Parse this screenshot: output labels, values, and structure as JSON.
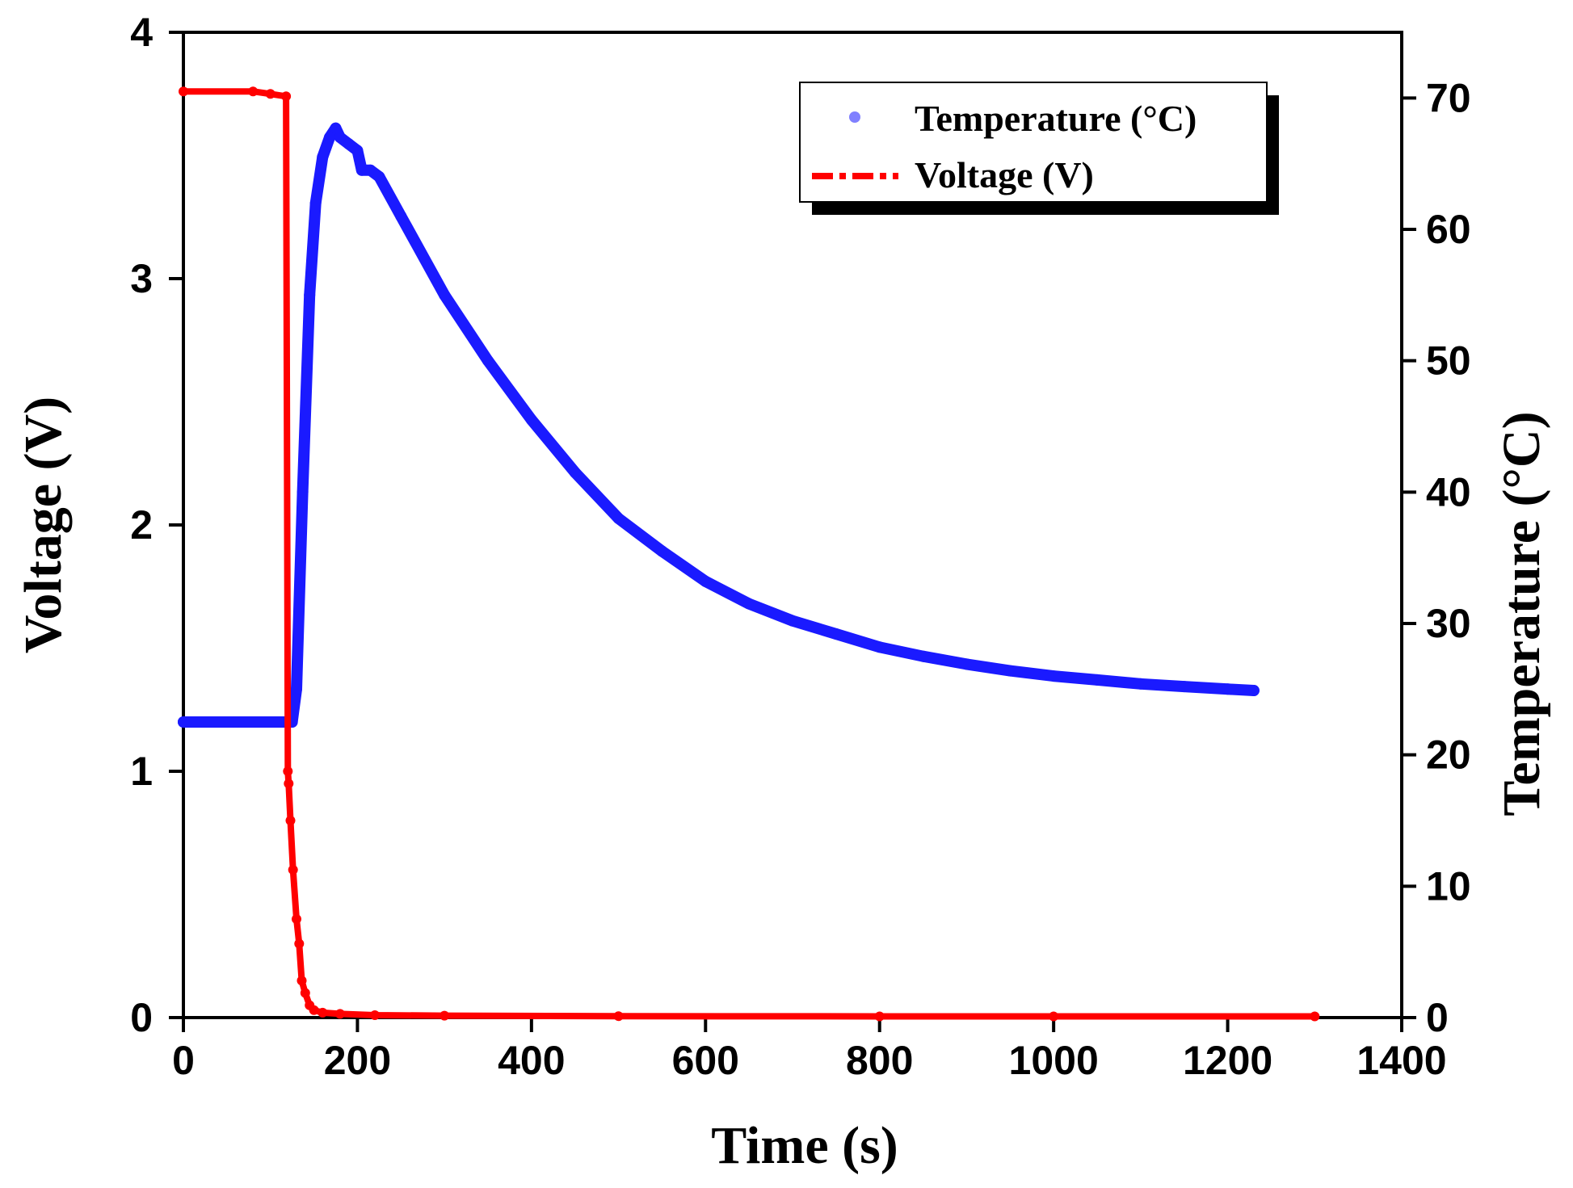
{
  "chart_data": {
    "type": "line",
    "title": "",
    "xlabel": "Time (s)",
    "ylabel_left": "Voltage (V)",
    "ylabel_right": "Temperature (°C)",
    "xlim": [
      0,
      1400
    ],
    "ylim_left": [
      0,
      4
    ],
    "ylim_right": [
      0,
      75
    ],
    "x_ticks": [
      "0",
      "200",
      "400",
      "600",
      "800",
      "1000",
      "1200",
      "1400"
    ],
    "x_tick_values": [
      0,
      200,
      400,
      600,
      800,
      1000,
      1200,
      1400
    ],
    "y_left_ticks": [
      "0",
      "1",
      "2",
      "3",
      "4"
    ],
    "y_left_tick_values": [
      0,
      1,
      2,
      3,
      4
    ],
    "y_right_ticks": [
      "0",
      "10",
      "20",
      "30",
      "40",
      "50",
      "60",
      "70"
    ],
    "y_right_tick_values": [
      0,
      10,
      20,
      30,
      40,
      50,
      60,
      70
    ],
    "grid": false,
    "legend_position": "top-right",
    "series": [
      {
        "name": "Temperature (°C)",
        "axis": "right",
        "color": "#1a1aff",
        "marker": "circle",
        "x": [
          0,
          60,
          125,
          130,
          137,
          145,
          152,
          160,
          168,
          175,
          180,
          190,
          200,
          205,
          215,
          225,
          250,
          300,
          350,
          400,
          450,
          500,
          550,
          600,
          650,
          700,
          750,
          800,
          850,
          900,
          950,
          1000,
          1050,
          1100,
          1150,
          1200,
          1230
        ],
        "values": [
          22.5,
          22.5,
          22.5,
          25,
          40,
          55,
          62,
          65.5,
          67,
          67.7,
          67,
          66.5,
          66,
          64.5,
          64.5,
          64,
          61,
          55,
          50,
          45.5,
          41.5,
          38,
          35.5,
          33.2,
          31.5,
          30.2,
          29.2,
          28.2,
          27.5,
          26.9,
          26.4,
          26,
          25.7,
          25.4,
          25.2,
          25,
          24.9
        ]
      },
      {
        "name": "Voltage (V)",
        "axis": "left",
        "color": "#ff0000",
        "marker": "circle",
        "x": [
          0,
          80,
          100,
          118,
          120,
          121,
          123,
          126,
          130,
          133,
          136,
          140,
          145,
          150,
          160,
          180,
          220,
          300,
          500,
          800,
          1000,
          1300
        ],
        "values": [
          3.76,
          3.76,
          3.75,
          3.74,
          1.0,
          0.95,
          0.8,
          0.6,
          0.4,
          0.3,
          0.15,
          0.1,
          0.05,
          0.03,
          0.02,
          0.015,
          0.01,
          0.008,
          0.006,
          0.005,
          0.005,
          0.005
        ]
      }
    ]
  }
}
